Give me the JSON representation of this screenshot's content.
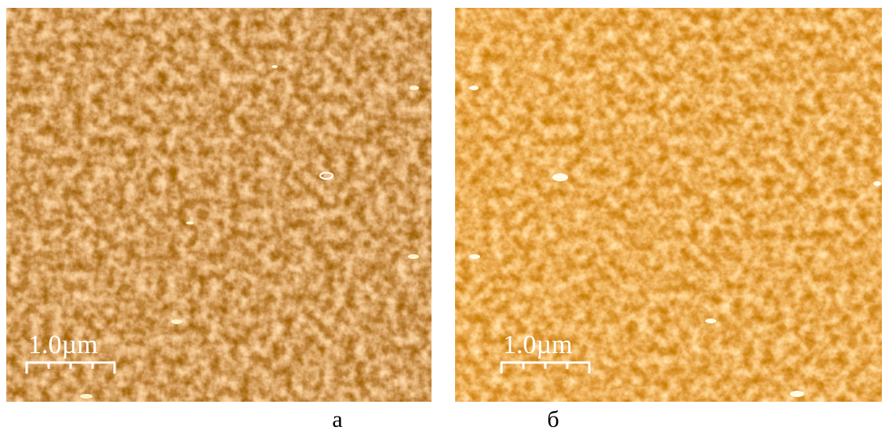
{
  "panels": [
    {
      "scale_label": "1.0µm",
      "caption": "а"
    },
    {
      "scale_label": "1.0µm",
      "caption": "б"
    }
  ]
}
